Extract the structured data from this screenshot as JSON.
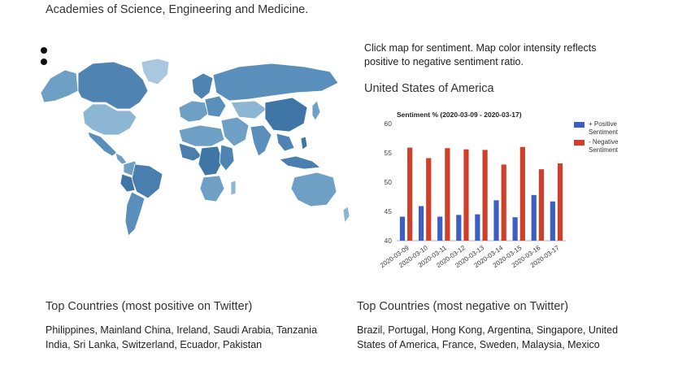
{
  "header": {
    "text": "Academies of Science, Engineering and Medicine."
  },
  "map": {
    "instructions": "Click map for sentiment. Map color intensity reflects positive to negative sentiment ratio.",
    "selected_country": "United States of America",
    "zoom_controls": [
      "zoom-in-icon",
      "zoom-out-icon"
    ],
    "colors": {
      "light": "#a9c8df",
      "mid": "#6e9fc5",
      "dark": "#3f76a6",
      "ocean": "#ffffff"
    }
  },
  "chart_data": {
    "type": "bar",
    "title": "Sentiment % (2020-03-09 - 2020-03-17)",
    "categories": [
      "2020-03-09",
      "2020-03-10",
      "2020-03-11",
      "2020-03-12",
      "2020-03-13",
      "2020-03-14",
      "2020-03-15",
      "2020-03-16",
      "2020-03-17"
    ],
    "series": [
      {
        "name": "+ Positive Sentiment",
        "color": "#3d5fc3",
        "values": [
          44.1,
          45.9,
          44.1,
          44.4,
          44.5,
          46.9,
          44.0,
          47.8,
          46.7
        ]
      },
      {
        "name": "- Negative Sentiment",
        "color": "#cf3f2a",
        "values": [
          55.9,
          54.1,
          55.8,
          55.6,
          55.5,
          53.0,
          56.0,
          52.2,
          53.2
        ]
      }
    ],
    "ylim": [
      40,
      60
    ],
    "yticks": [
      "60",
      "55",
      "50",
      "45",
      "40"
    ],
    "legend_position": "right",
    "grid": false
  },
  "positive": {
    "title": "Top Countries (most positive on Twitter)",
    "text": "Philippines, Mainland China, Ireland, Saudi Arabia, Tanzania India, Sri Lanka, Switzerland, Ecuador, Pakistan"
  },
  "negative": {
    "title": "Top Countries (most negative on Twitter)",
    "text": "Brazil, Portugal, Hong Kong, Argentina, Singapore, United States of America, France, Sweden, Malaysia, Mexico"
  }
}
